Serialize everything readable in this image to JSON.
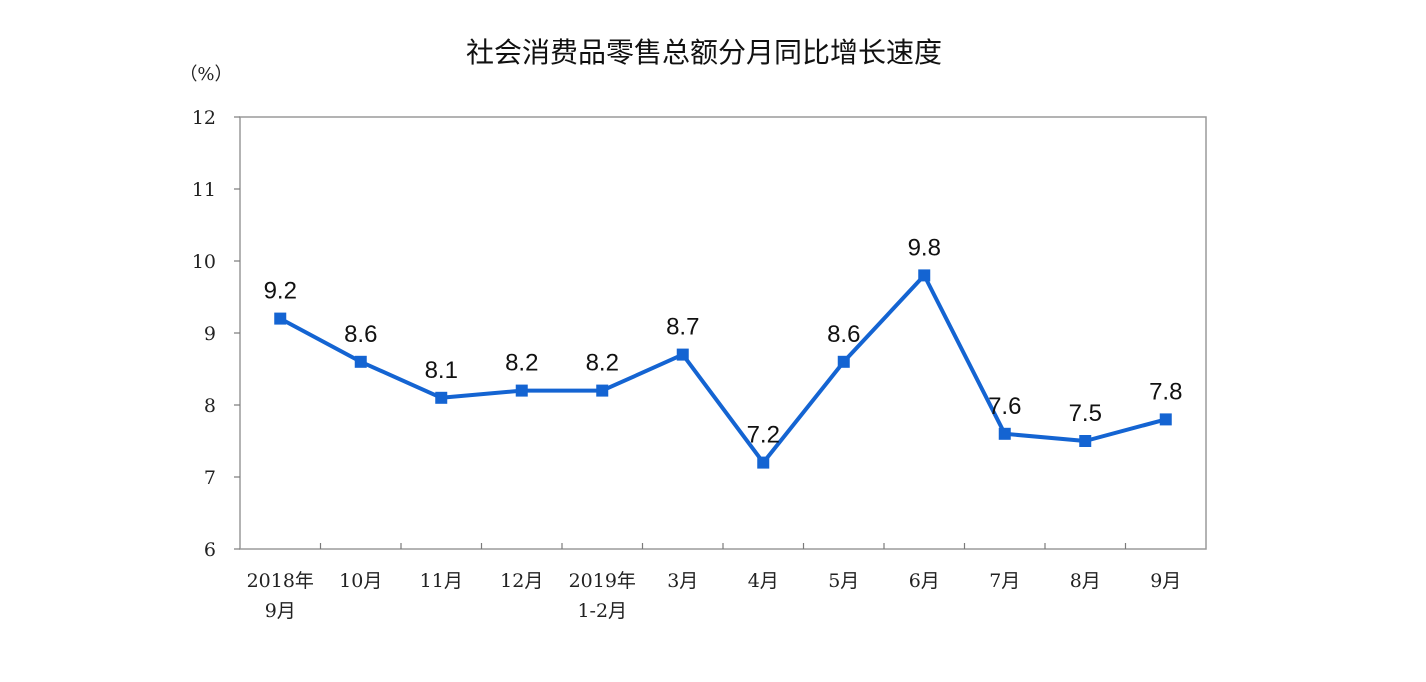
{
  "chart_data": {
    "type": "line",
    "title": "社会消费品零售总额分月同比增长速度",
    "unit": "（%）",
    "categories": [
      [
        "2018年",
        "9月"
      ],
      [
        "10月"
      ],
      [
        "11月"
      ],
      [
        "12月"
      ],
      [
        "2019年",
        "1-2月"
      ],
      [
        "3月"
      ],
      [
        "4月"
      ],
      [
        "5月"
      ],
      [
        "6月"
      ],
      [
        "7月"
      ],
      [
        "8月"
      ],
      [
        "9月"
      ]
    ],
    "series": [
      {
        "values": [
          9.2,
          8.6,
          8.1,
          8.2,
          8.2,
          8.7,
          7.2,
          8.6,
          9.8,
          7.6,
          7.5,
          7.8
        ],
        "color": "#1464d2"
      }
    ],
    "data_labels": [
      "9.2",
      "8.6",
      "8.1",
      "8.2",
      "8.2",
      "8.7",
      "7.2",
      "8.6",
      "9.8",
      "7.6",
      "7.5",
      "7.8"
    ],
    "ylim": [
      6,
      12
    ],
    "yticks": [
      "6",
      "7",
      "8",
      "9",
      "10",
      "11",
      "12"
    ],
    "grid": false,
    "marker": "square"
  }
}
